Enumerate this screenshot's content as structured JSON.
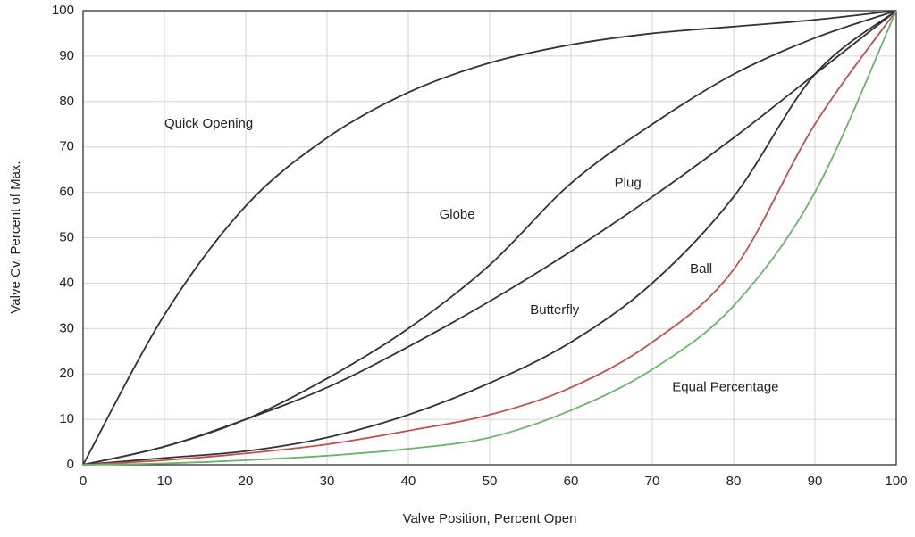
{
  "chart_data": {
    "type": "line",
    "x_label": "Valve Position, Percent Open",
    "y_label": "Valve Cv, Percent of Max.",
    "x": [
      0,
      10,
      20,
      30,
      40,
      50,
      60,
      70,
      80,
      90,
      100
    ],
    "series": [
      {
        "name": "Quick Opening",
        "color": "#333333",
        "values": [
          0,
          33,
          57,
          72,
          82,
          88.5,
          92.5,
          95,
          96.5,
          98,
          100
        ]
      },
      {
        "name": "Globe",
        "color": "#333333",
        "values": [
          0,
          4,
          10,
          19,
          30,
          44,
          62,
          75,
          86,
          94,
          100
        ]
      },
      {
        "name": "Plug",
        "color": "#333333",
        "values": [
          0,
          4,
          10,
          17,
          26,
          36,
          47,
          59,
          72,
          86,
          100
        ]
      },
      {
        "name": "Butterfly",
        "color": "#333333",
        "values": [
          0,
          1.5,
          3,
          6,
          11,
          18,
          27,
          40,
          59,
          86,
          100
        ]
      },
      {
        "name": "Ball",
        "color": "#c0504d",
        "values": [
          0,
          1,
          2.5,
          4.5,
          7.5,
          11,
          17,
          27,
          43,
          75,
          100
        ]
      },
      {
        "name": "Equal Percentage",
        "color": "#6ab56a",
        "values": [
          0,
          0.3,
          1,
          2,
          3.5,
          6,
          12,
          21,
          35,
          60,
          100
        ]
      }
    ],
    "xlim": [
      0,
      100
    ],
    "xticks": [
      0,
      10,
      20,
      30,
      40,
      50,
      60,
      70,
      80,
      90,
      100
    ],
    "ylim": [
      0,
      100
    ],
    "yticks": [
      0,
      10,
      20,
      30,
      40,
      50,
      60,
      70,
      80,
      90,
      100
    ],
    "grid": true
  }
}
